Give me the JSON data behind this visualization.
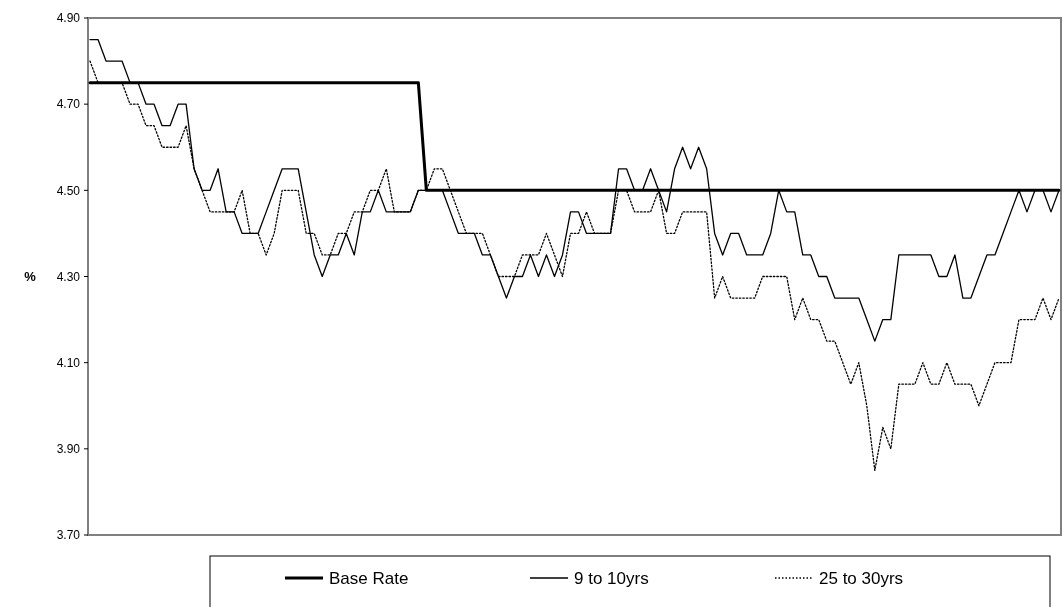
{
  "chart_data": {
    "type": "line",
    "ylabel": "%",
    "categories": [
      null,
      null,
      null,
      null,
      null,
      null,
      null,
      null,
      null,
      null,
      null,
      null,
      null,
      null,
      null,
      null,
      null,
      null,
      null,
      null,
      null,
      null,
      null,
      null,
      null,
      null,
      null,
      null,
      null,
      null,
      null,
      null,
      null,
      null,
      null,
      null,
      null,
      null,
      null,
      null,
      null,
      null,
      null,
      null,
      null,
      null,
      null,
      null,
      null,
      null,
      null,
      null,
      null,
      null,
      null,
      null,
      null,
      null,
      null,
      null,
      null,
      null,
      null,
      null,
      null,
      null,
      null,
      null,
      null,
      null,
      null,
      null,
      null,
      null,
      null,
      null,
      null,
      null,
      null,
      null,
      null,
      null,
      null,
      null,
      null,
      null,
      null,
      null,
      null,
      null,
      null,
      null,
      null,
      null,
      null,
      null,
      null,
      null,
      null,
      null,
      null,
      null,
      null,
      null,
      null,
      null,
      null,
      null,
      null,
      null,
      null,
      null,
      null,
      null,
      null,
      null,
      null,
      null,
      null,
      null,
      null,
      null
    ],
    "series": [
      {
        "name": "Base Rate",
        "color": "#000000",
        "line_style": "solid",
        "values": [
          4.75,
          4.75,
          4.75,
          4.75,
          4.75,
          4.75,
          4.75,
          4.75,
          4.75,
          4.75,
          4.75,
          4.75,
          4.75,
          4.75,
          4.75,
          4.75,
          4.75,
          4.75,
          4.75,
          4.75,
          4.75,
          4.75,
          4.75,
          4.75,
          4.75,
          4.75,
          4.75,
          4.75,
          4.75,
          4.75,
          4.75,
          4.75,
          4.75,
          4.75,
          4.75,
          4.75,
          4.75,
          4.75,
          4.75,
          4.75,
          4.75,
          4.75,
          4.5,
          4.5,
          4.5,
          4.5,
          4.5,
          4.5,
          4.5,
          4.5,
          4.5,
          4.5,
          4.5,
          4.5,
          4.5,
          4.5,
          4.5,
          4.5,
          4.5,
          4.5,
          4.5,
          4.5,
          4.5,
          4.5,
          4.5,
          4.5,
          4.5,
          4.5,
          4.5,
          4.5,
          4.5,
          4.5,
          4.5,
          4.5,
          4.5,
          4.5,
          4.5,
          4.5,
          4.5,
          4.5,
          4.5,
          4.5,
          4.5,
          4.5,
          4.5,
          4.5,
          4.5,
          4.5,
          4.5,
          4.5,
          4.5,
          4.5,
          4.5,
          4.5,
          4.5,
          4.5,
          4.5,
          4.5,
          4.5,
          4.5,
          4.5,
          4.5,
          4.5,
          4.5,
          4.5,
          4.5,
          4.5,
          4.5,
          4.5,
          4.5,
          4.5,
          4.5,
          4.5,
          4.5,
          4.5,
          4.5,
          4.5,
          4.5,
          4.5,
          4.5,
          4.5,
          4.5
        ]
      },
      {
        "name": "9 to 10yrs",
        "color": "#000000",
        "line_style": "solid",
        "values": [
          4.85,
          4.85,
          4.8,
          4.8,
          4.8,
          4.75,
          4.75,
          4.7,
          4.7,
          4.65,
          4.65,
          4.7,
          4.7,
          4.55,
          4.5,
          4.5,
          4.55,
          4.45,
          4.45,
          4.4,
          4.4,
          4.4,
          4.45,
          4.5,
          4.55,
          4.55,
          4.55,
          4.45,
          4.35,
          4.3,
          4.35,
          4.35,
          4.4,
          4.35,
          4.45,
          4.45,
          4.5,
          4.45,
          4.45,
          4.45,
          4.45,
          4.5,
          4.5,
          4.5,
          4.5,
          4.45,
          4.4,
          4.4,
          4.4,
          4.35,
          4.35,
          4.3,
          4.25,
          4.3,
          4.3,
          4.35,
          4.3,
          4.35,
          4.3,
          4.35,
          4.45,
          4.45,
          4.4,
          4.4,
          4.4,
          4.4,
          4.55,
          4.55,
          4.5,
          4.5,
          4.55,
          4.5,
          4.45,
          4.55,
          4.6,
          4.55,
          4.6,
          4.55,
          4.4,
          4.35,
          4.4,
          4.4,
          4.35,
          4.35,
          4.35,
          4.4,
          4.5,
          4.45,
          4.45,
          4.35,
          4.35,
          4.3,
          4.3,
          4.25,
          4.25,
          4.25,
          4.25,
          4.2,
          4.15,
          4.2,
          4.2,
          4.35,
          4.35,
          4.35,
          4.35,
          4.35,
          4.3,
          4.3,
          4.35,
          4.25,
          4.25,
          4.3,
          4.35,
          4.35,
          4.4,
          4.45,
          4.5,
          4.45,
          4.5,
          4.5,
          4.45,
          4.5
        ]
      },
      {
        "name": "25 to 30yrs",
        "color": "#000000",
        "line_style": "dotted",
        "values": [
          4.8,
          4.75,
          4.75,
          4.75,
          4.75,
          4.7,
          4.7,
          4.65,
          4.65,
          4.6,
          4.6,
          4.6,
          4.65,
          4.55,
          4.5,
          4.45,
          4.45,
          4.45,
          4.45,
          4.5,
          4.4,
          4.4,
          4.35,
          4.4,
          4.5,
          4.5,
          4.5,
          4.4,
          4.4,
          4.35,
          4.35,
          4.4,
          4.4,
          4.45,
          4.45,
          4.5,
          4.5,
          4.55,
          4.45,
          4.45,
          4.45,
          4.5,
          4.5,
          4.55,
          4.55,
          4.5,
          4.45,
          4.4,
          4.4,
          4.4,
          4.35,
          4.3,
          4.3,
          4.3,
          4.35,
          4.35,
          4.35,
          4.4,
          4.35,
          4.3,
          4.4,
          4.4,
          4.45,
          4.4,
          4.4,
          4.4,
          4.5,
          4.5,
          4.45,
          4.45,
          4.45,
          4.5,
          4.4,
          4.4,
          4.45,
          4.45,
          4.45,
          4.45,
          4.25,
          4.3,
          4.25,
          4.25,
          4.25,
          4.25,
          4.3,
          4.3,
          4.3,
          4.3,
          4.2,
          4.25,
          4.2,
          4.2,
          4.15,
          4.15,
          4.1,
          4.05,
          4.1,
          4,
          3.85,
          3.95,
          3.9,
          4.05,
          4.05,
          4.05,
          4.1,
          4.05,
          4.05,
          4.1,
          4.05,
          4.05,
          4.05,
          4,
          4.05,
          4.1,
          4.1,
          4.1,
          4.2,
          4.2,
          4.2,
          4.25,
          4.2,
          4.25
        ]
      }
    ],
    "ylim": [
      3.7,
      4.9
    ],
    "yticks": [
      {
        "value": 3.7,
        "label": "3.70"
      },
      {
        "value": 3.9,
        "label": "3.90"
      },
      {
        "value": 4.1,
        "label": "4.10"
      },
      {
        "value": 4.3,
        "label": "4.30"
      },
      {
        "value": 4.5,
        "label": "4.50"
      },
      {
        "value": 4.7,
        "label": "4.70"
      },
      {
        "value": 4.9,
        "label": "4.90"
      }
    ],
    "tick_labels": "y",
    "grid": false,
    "legend": "bottom"
  }
}
